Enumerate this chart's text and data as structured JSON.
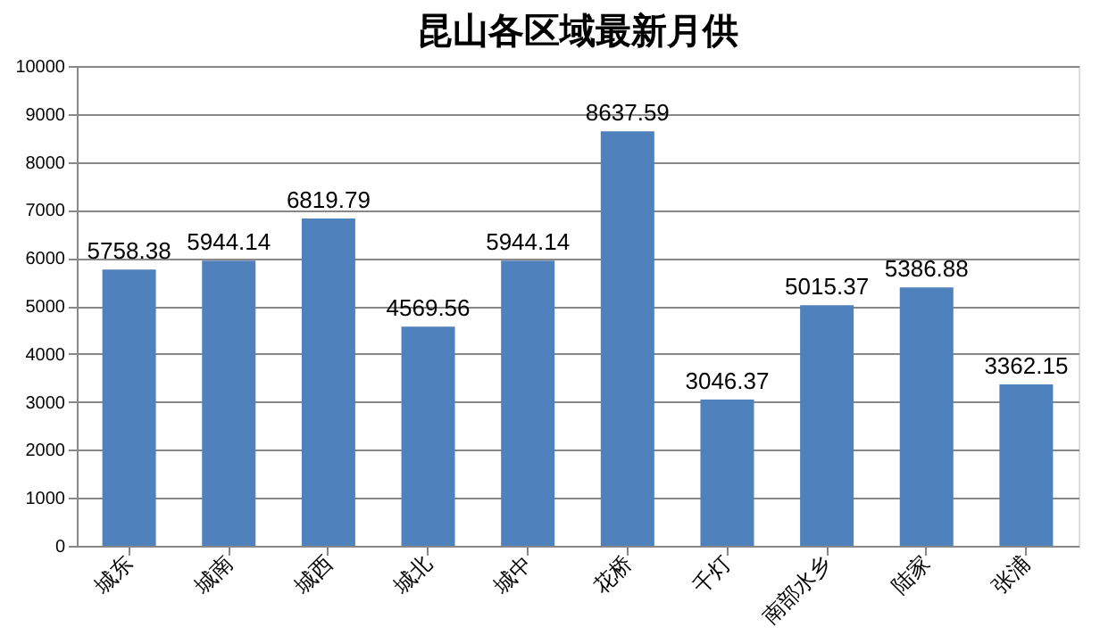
{
  "chart_data": {
    "type": "bar",
    "title": "昆山各区域最新月供",
    "categories": [
      "城东",
      "城南",
      "城西",
      "城北",
      "城中",
      "花桥",
      "千灯",
      "南部水乡",
      "陆家",
      "张浦"
    ],
    "values": [
      5758.38,
      5944.14,
      6819.79,
      4569.56,
      5944.14,
      8637.59,
      3046.37,
      5015.37,
      5386.88,
      3362.15
    ],
    "color": "#4f81bd",
    "ylim": [
      0,
      10000
    ],
    "yticks": [
      0,
      1000,
      2000,
      3000,
      4000,
      5000,
      6000,
      7000,
      8000,
      9000,
      10000
    ],
    "grid": "y",
    "data_labels": true
  }
}
